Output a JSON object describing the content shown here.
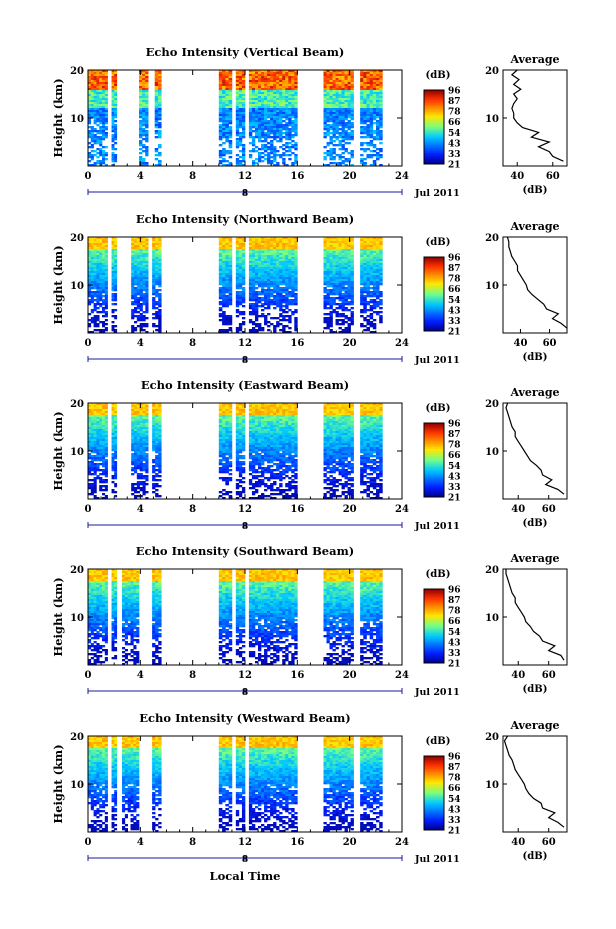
{
  "figure": {
    "date_label": "Jul 2011",
    "xlabel": "Local Time",
    "panel_ylabel": "Height (km)",
    "colorbar_unit": "(dB)",
    "colorbar_ticks": [
      "96",
      "87",
      "78",
      "66",
      "54",
      "43",
      "33",
      "21"
    ],
    "avg_title": "Average",
    "avg_xlabel": "(dB)",
    "date_tick": "8"
  },
  "chart_data": [
    {
      "type": "heatmap",
      "title": "Echo Intensity (Vertical Beam)",
      "xlabel": "Local Time",
      "ylabel": "Height (km)",
      "xlim": [
        0,
        24
      ],
      "ylim": [
        0,
        20
      ],
      "xticks": [
        0,
        4,
        8,
        12,
        16,
        20,
        24
      ],
      "yticks": [
        10,
        20
      ],
      "data_segments_hours": [
        [
          0,
          1.5
        ],
        [
          1.8,
          2.2
        ],
        [
          3.9,
          4.6
        ],
        [
          5.1,
          5.6
        ],
        [
          10.0,
          11.0
        ],
        [
          11.3,
          12.0
        ],
        [
          12.3,
          16.0
        ],
        [
          18.0,
          20.3
        ],
        [
          20.8,
          22.5
        ]
      ],
      "avg_profile": {
        "xlabel": "(dB)",
        "xticks": [
          40,
          60
        ],
        "xlim": [
          32,
          68
        ],
        "yticks": [
          10,
          20
        ],
        "ylim": [
          0,
          20
        ],
        "height_km": [
          1,
          2,
          3,
          4,
          5,
          6,
          7,
          8,
          9,
          10,
          11,
          12,
          13,
          14,
          15,
          16,
          17,
          18,
          19,
          20
        ],
        "db": [
          66,
          60,
          58,
          52,
          58,
          48,
          52,
          43,
          40,
          38,
          38,
          37,
          38,
          40,
          38,
          42,
          38,
          41,
          37,
          40
        ]
      }
    },
    {
      "type": "heatmap",
      "title": "Echo Intensity (Northward Beam)",
      "xlabel": "Local Time",
      "ylabel": "Height (km)",
      "xlim": [
        0,
        24
      ],
      "ylim": [
        0,
        20
      ],
      "xticks": [
        0,
        4,
        8,
        12,
        16,
        20,
        24
      ],
      "yticks": [
        10,
        20
      ],
      "data_segments_hours": [
        [
          0,
          1.5
        ],
        [
          1.8,
          2.2
        ],
        [
          3.3,
          4.6
        ],
        [
          4.9,
          5.6
        ],
        [
          10.0,
          11.0
        ],
        [
          11.3,
          12.0
        ],
        [
          12.3,
          16.0
        ],
        [
          18.0,
          20.3
        ],
        [
          20.8,
          22.5
        ]
      ],
      "avg_profile": {
        "xlabel": "(dB)",
        "xticks": [
          40,
          60
        ],
        "xlim": [
          28,
          72
        ],
        "yticks": [
          10,
          20
        ],
        "ylim": [
          0,
          20
        ],
        "height_km": [
          1,
          2,
          3,
          4,
          5,
          6,
          7,
          8,
          9,
          10,
          11,
          12,
          13,
          14,
          15,
          16,
          17,
          18,
          19,
          20
        ],
        "db": [
          72,
          68,
          62,
          66,
          58,
          56,
          52,
          48,
          45,
          44,
          42,
          40,
          38,
          38,
          36,
          34,
          33,
          32,
          32,
          31
        ]
      }
    },
    {
      "type": "heatmap",
      "title": "Echo Intensity (Eastward Beam)",
      "xlabel": "Local Time",
      "ylabel": "Height (km)",
      "xlim": [
        0,
        24
      ],
      "ylim": [
        0,
        20
      ],
      "xticks": [
        0,
        4,
        8,
        12,
        16,
        20,
        24
      ],
      "yticks": [
        10,
        20
      ],
      "data_segments_hours": [
        [
          0,
          1.5
        ],
        [
          1.8,
          2.2
        ],
        [
          3.3,
          4.6
        ],
        [
          4.9,
          5.6
        ],
        [
          10.0,
          11.0
        ],
        [
          11.3,
          12.0
        ],
        [
          12.3,
          16.0
        ],
        [
          18.0,
          20.3
        ],
        [
          20.8,
          22.5
        ]
      ],
      "avg_profile": {
        "xlabel": "(dB)",
        "xticks": [
          40,
          60
        ],
        "xlim": [
          30,
          72
        ],
        "yticks": [
          10,
          20
        ],
        "ylim": [
          0,
          20
        ],
        "height_km": [
          1,
          2,
          3,
          4,
          5,
          6,
          7,
          8,
          9,
          10,
          11,
          12,
          13,
          14,
          15,
          16,
          17,
          18,
          19,
          20
        ],
        "db": [
          70,
          66,
          58,
          62,
          56,
          55,
          52,
          48,
          46,
          44,
          42,
          40,
          38,
          38,
          36,
          35,
          34,
          33,
          32,
          33
        ]
      }
    },
    {
      "type": "heatmap",
      "title": "Echo Intensity (Southward Beam)",
      "xlabel": "Local Time",
      "ylabel": "Height (km)",
      "xlim": [
        0,
        24
      ],
      "ylim": [
        0,
        20
      ],
      "xticks": [
        0,
        4,
        8,
        12,
        16,
        20,
        24
      ],
      "yticks": [
        10,
        20
      ],
      "data_segments_hours": [
        [
          0,
          1.5
        ],
        [
          1.8,
          2.2
        ],
        [
          2.6,
          3.9
        ],
        [
          4.9,
          5.6
        ],
        [
          10.0,
          11.0
        ],
        [
          11.3,
          12.0
        ],
        [
          12.3,
          16.0
        ],
        [
          18.0,
          20.3
        ],
        [
          20.8,
          22.5
        ]
      ],
      "avg_profile": {
        "xlabel": "(dB)",
        "xticks": [
          40,
          60
        ],
        "xlim": [
          30,
          72
        ],
        "yticks": [
          10,
          20
        ],
        "ylim": [
          0,
          20
        ],
        "height_km": [
          1,
          2,
          3,
          4,
          5,
          6,
          7,
          8,
          9,
          10,
          11,
          12,
          13,
          14,
          15,
          16,
          17,
          18,
          19,
          20
        ],
        "db": [
          70,
          68,
          60,
          64,
          56,
          54,
          50,
          48,
          45,
          44,
          42,
          40,
          38,
          38,
          36,
          35,
          34,
          33,
          32,
          32
        ]
      }
    },
    {
      "type": "heatmap",
      "title": "Echo Intensity (Westward Beam)",
      "xlabel": "Local Time",
      "ylabel": "Height (km)",
      "xlim": [
        0,
        24
      ],
      "ylim": [
        0,
        20
      ],
      "xticks": [
        0,
        4,
        8,
        12,
        16,
        20,
        24
      ],
      "yticks": [
        10,
        20
      ],
      "data_segments_hours": [
        [
          0,
          1.5
        ],
        [
          1.8,
          2.2
        ],
        [
          2.6,
          3.9
        ],
        [
          4.9,
          5.6
        ],
        [
          10.0,
          11.0
        ],
        [
          11.3,
          12.0
        ],
        [
          12.3,
          16.0
        ],
        [
          18.0,
          20.3
        ],
        [
          20.8,
          22.5
        ]
      ],
      "avg_profile": {
        "xlabel": "(dB)",
        "xticks": [
          40,
          60
        ],
        "xlim": [
          30,
          72
        ],
        "yticks": [
          10,
          20
        ],
        "ylim": [
          0,
          20
        ],
        "height_km": [
          1,
          2,
          3,
          4,
          5,
          6,
          7,
          8,
          9,
          10,
          11,
          12,
          13,
          14,
          15,
          16,
          17,
          18,
          19,
          20
        ],
        "db": [
          70,
          66,
          60,
          64,
          56,
          55,
          50,
          47,
          45,
          44,
          42,
          40,
          38,
          37,
          36,
          34,
          33,
          32,
          31,
          33
        ]
      }
    }
  ]
}
